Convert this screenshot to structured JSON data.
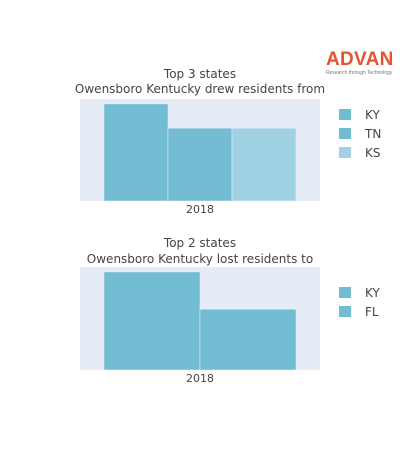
{
  "logo": {
    "wordmark": "ADVAN",
    "tagline": "Research through Technology",
    "color": "#e8532f"
  },
  "chart_data": [
    {
      "type": "bar",
      "title_line1": "Top 3 states",
      "title_line2": "Owensboro Kentucky drew residents from",
      "categories": [
        "2018"
      ],
      "series": [
        {
          "name": "KY",
          "values": [
            1.0
          ],
          "color": "#72bcd4"
        },
        {
          "name": "TN",
          "values": [
            0.75
          ],
          "color": "#72bcd4"
        },
        {
          "name": "KS",
          "values": [
            0.75
          ],
          "color": "#9fd1e3"
        }
      ],
      "ylim": [
        0,
        1.05
      ],
      "grid": false,
      "legend": "right"
    },
    {
      "type": "bar",
      "title_line1": "Top 2 states",
      "title_line2": "Owensboro Kentucky lost residents to",
      "categories": [
        "2018"
      ],
      "series": [
        {
          "name": "KY",
          "values": [
            1.0
          ],
          "color": "#72bcd4"
        },
        {
          "name": "FL",
          "values": [
            0.62
          ],
          "color": "#72bcd4"
        }
      ],
      "ylim": [
        0,
        1.05
      ],
      "grid": false,
      "legend": "right"
    }
  ]
}
